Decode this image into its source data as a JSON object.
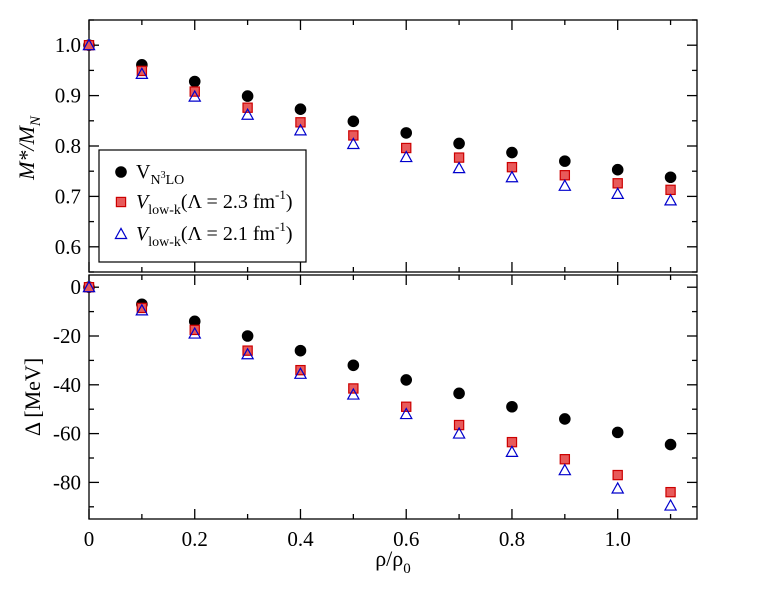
{
  "colors": {
    "n3lo": "#000000",
    "low_k_23_fill": "#e85a5a",
    "low_k_23_stroke": "#cc0000",
    "low_k_21": "#0000cc"
  },
  "chart_data": [
    {
      "type": "scatter",
      "panel": "top",
      "ylabel": "M*/M_N",
      "xlabel": "",
      "xlim": [
        0,
        1.15
      ],
      "ylim": [
        0.55,
        1.05
      ],
      "xticks": [
        0,
        0.2,
        0.4,
        0.6,
        0.8,
        1.0
      ],
      "xtick_labels": [
        "",
        "",
        "",
        "",
        "",
        ""
      ],
      "yticks": [
        0.6,
        0.7,
        0.8,
        0.9,
        1.0
      ],
      "ytick_labels": [
        "0.6",
        "0.7",
        "0.8",
        "0.9",
        "1.0"
      ],
      "legend_position": "left",
      "legend": [
        {
          "main": "V",
          "sub": "N",
          "sup": "3",
          "sub2": "LO",
          "tail": ""
        },
        {
          "main": "V",
          "sub": "low-k",
          "sup": "",
          "sub2": "",
          "tail": "(Λ = 2.3 fm",
          "tail_sup": "-1",
          "tail_end": ")"
        },
        {
          "main": "V",
          "sub": "low-k",
          "sup": "",
          "sub2": "",
          "tail": "(Λ = 2.1 fm",
          "tail_sup": "-1",
          "tail_end": ")"
        }
      ],
      "series": [
        {
          "name": "V_N3LO",
          "marker": "circle",
          "x": [
            0,
            0.1,
            0.2,
            0.3,
            0.4,
            0.5,
            0.6,
            0.7,
            0.8,
            0.9,
            1.0,
            1.1
          ],
          "y": [
            1.0,
            0.961,
            0.928,
            0.899,
            0.873,
            0.849,
            0.826,
            0.805,
            0.787,
            0.77,
            0.753,
            0.738
          ]
        },
        {
          "name": "V_low-k (Lambda = 2.3 fm^-1)",
          "marker": "square",
          "x": [
            0,
            0.1,
            0.2,
            0.3,
            0.4,
            0.5,
            0.6,
            0.7,
            0.8,
            0.9,
            1.0,
            1.1
          ],
          "y": [
            1.0,
            0.949,
            0.908,
            0.876,
            0.847,
            0.821,
            0.796,
            0.777,
            0.758,
            0.742,
            0.726,
            0.713
          ]
        },
        {
          "name": "V_low-k (Lambda = 2.1 fm^-1)",
          "marker": "triangle",
          "x": [
            0,
            0.1,
            0.2,
            0.3,
            0.4,
            0.5,
            0.6,
            0.7,
            0.8,
            0.9,
            1.0,
            1.1
          ],
          "y": [
            1.0,
            0.943,
            0.898,
            0.862,
            0.831,
            0.804,
            0.778,
            0.756,
            0.738,
            0.721,
            0.705,
            0.692
          ]
        }
      ]
    },
    {
      "type": "scatter",
      "panel": "bottom",
      "ylabel": "Δ  [MeV]",
      "xlabel": "ρ/ρ",
      "xlabel_sub": "0",
      "xlim": [
        0,
        1.15
      ],
      "ylim": [
        -95,
        5
      ],
      "xticks": [
        0,
        0.2,
        0.4,
        0.6,
        0.8,
        1.0
      ],
      "xtick_labels": [
        "0",
        "0.2",
        "0.4",
        "0.6",
        "0.8",
        "1.0"
      ],
      "yticks": [
        0,
        -20,
        -40,
        -60,
        -80
      ],
      "ytick_labels": [
        "0",
        "-20",
        "-40",
        "-60",
        "-80"
      ],
      "series": [
        {
          "name": "V_N3LO",
          "marker": "circle",
          "x": [
            0,
            0.1,
            0.2,
            0.3,
            0.4,
            0.5,
            0.6,
            0.7,
            0.8,
            0.9,
            1.0,
            1.1
          ],
          "y": [
            0,
            -7,
            -14,
            -20,
            -26,
            -32,
            -38,
            -43.5,
            -49,
            -54,
            -59.5,
            -64.5
          ]
        },
        {
          "name": "V_low-k (Lambda = 2.3 fm^-1)",
          "marker": "square",
          "x": [
            0,
            0.1,
            0.2,
            0.3,
            0.4,
            0.5,
            0.6,
            0.7,
            0.8,
            0.9,
            1.0,
            1.1
          ],
          "y": [
            0,
            -8.5,
            -17.5,
            -26,
            -34,
            -41.5,
            -49,
            -56.5,
            -63.5,
            -70.5,
            -77,
            -84
          ]
        },
        {
          "name": "V_low-k (Lambda = 2.1 fm^-1)",
          "marker": "triangle",
          "x": [
            0,
            0.1,
            0.2,
            0.3,
            0.4,
            0.5,
            0.6,
            0.7,
            0.8,
            0.9,
            1.0,
            1.1
          ],
          "y": [
            0,
            -9.5,
            -19,
            -27.5,
            -35.5,
            -44,
            -52,
            -60,
            -67.5,
            -75,
            -82.5,
            -89.5
          ]
        }
      ]
    }
  ]
}
